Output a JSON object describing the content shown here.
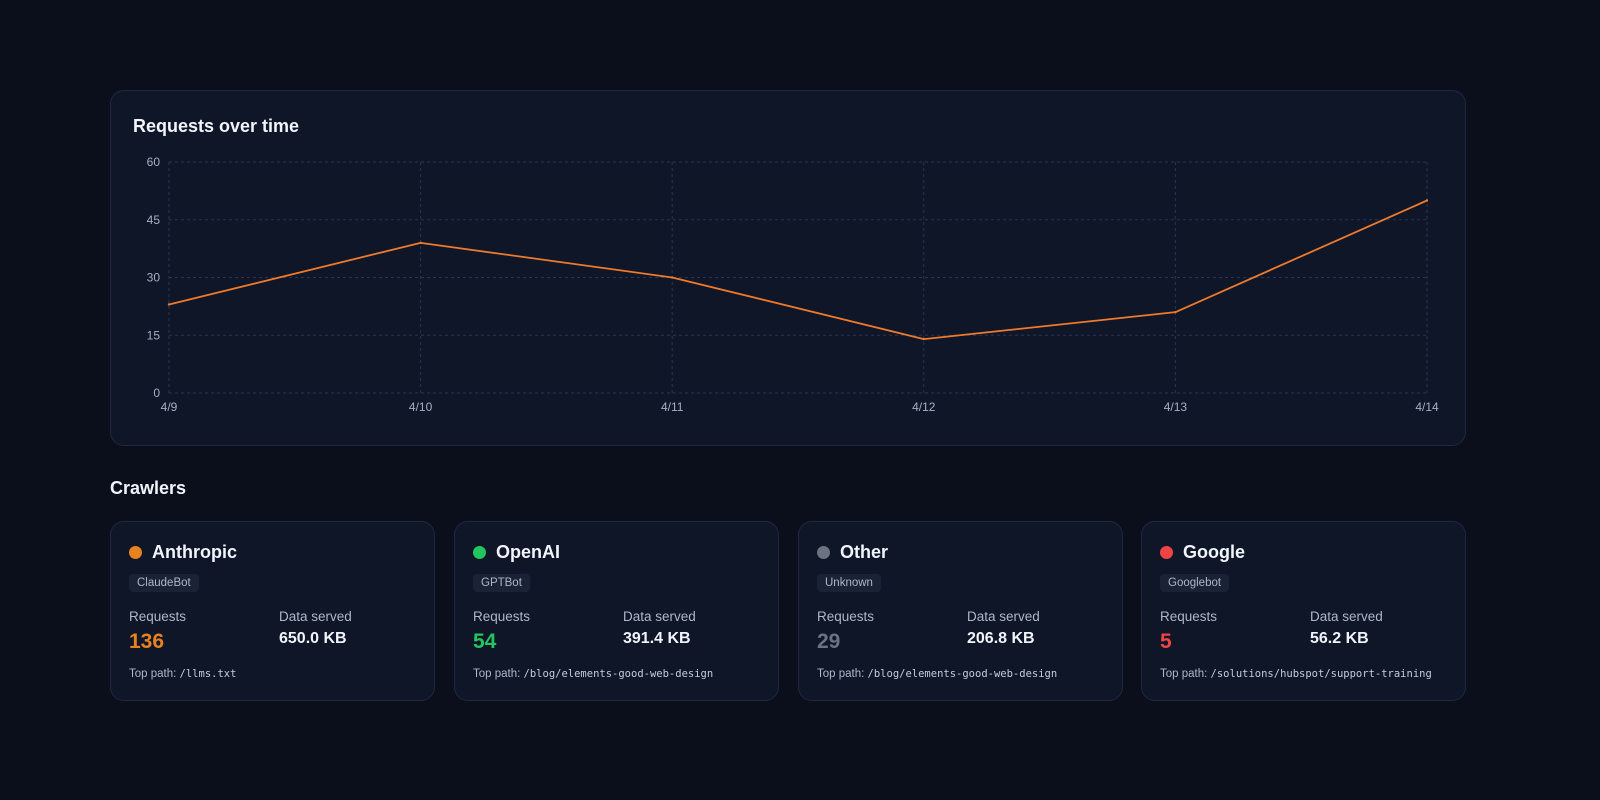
{
  "chart_section": {
    "title": "Requests over time"
  },
  "chart_data": {
    "type": "line",
    "title": "Requests over time",
    "xlabel": "",
    "ylabel": "",
    "categories": [
      "4/9",
      "4/10",
      "4/11",
      "4/12",
      "4/13",
      "4/14"
    ],
    "series": [
      {
        "values": [
          23,
          39,
          30,
          14,
          21,
          50
        ]
      }
    ],
    "ylim": [
      0,
      60
    ],
    "yticks": [
      0,
      15,
      30,
      45,
      60
    ],
    "grid": true,
    "line_color": "#f07a2c"
  },
  "crawlers_section": {
    "title": "Crawlers",
    "requests_label": "Requests",
    "data_label": "Data served",
    "top_path_label": "Top path:"
  },
  "crawlers": [
    {
      "name": "Anthropic",
      "bot": "ClaudeBot",
      "requests": "136",
      "data_served": "650.0 KB",
      "top_path": "/llms.txt",
      "color": "#e8821f"
    },
    {
      "name": "OpenAI",
      "bot": "GPTBot",
      "requests": "54",
      "data_served": "391.4 KB",
      "top_path": "/blog/elements-good-web-design",
      "color": "#22c55e"
    },
    {
      "name": "Other",
      "bot": "Unknown",
      "requests": "29",
      "data_served": "206.8 KB",
      "top_path": "/blog/elements-good-web-design",
      "color": "#6b7280"
    },
    {
      "name": "Google",
      "bot": "Googlebot",
      "requests": "5",
      "data_served": "56.2 KB",
      "top_path": "/solutions/hubspot/support-training",
      "color": "#ef4444"
    }
  ]
}
